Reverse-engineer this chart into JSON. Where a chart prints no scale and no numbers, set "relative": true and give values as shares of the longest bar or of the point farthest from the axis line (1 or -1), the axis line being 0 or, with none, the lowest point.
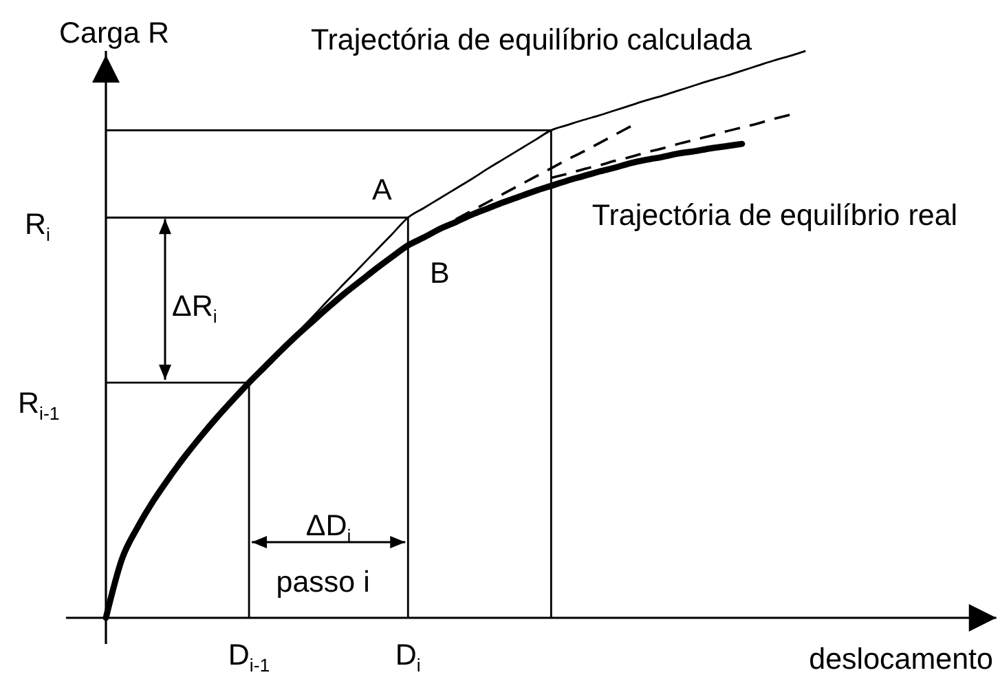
{
  "chart_data": {
    "type": "line",
    "relative": true,
    "xlabel": "deslocamento",
    "ylabel": "Carga R",
    "categories": [
      null,
      null,
      null,
      null,
      null,
      null,
      null,
      null,
      null,
      "D$_{i-1}$",
      null,
      null,
      null,
      null,
      null,
      null,
      null,
      null,
      null,
      "D$_{i}$",
      null,
      null,
      null,
      null,
      null,
      null,
      null,
      null,
      null,
      null,
      null,
      null,
      null,
      null,
      null,
      null,
      null,
      null,
      null,
      null,
      null,
      null,
      null,
      null,
      null,
      null,
      null,
      null,
      null,
      null,
      null,
      null,
      null,
      null,
      null,
      null,
      null
    ],
    "series": [
      {
        "name": "Trajectória de equilíbrio real",
        "color": "#000000",
        "values": [
          0,
          0.103,
          0.16,
          0.207,
          0.248,
          0.286,
          0.321,
          0.354,
          0.385,
          0.415,
          0.443,
          0.471,
          0.498,
          0.523,
          0.548,
          0.572,
          0.594,
          0.616,
          0.637,
          0.657,
          0.671,
          0.686,
          0.698,
          0.711,
          0.722,
          0.733,
          0.743,
          0.753,
          0.762,
          0.771,
          0.779,
          0.787,
          0.794,
          0.802,
          0.808,
          0.813,
          0.819,
          0.823,
          0.828,
          0.832,
          0.836,
          null,
          null,
          null,
          null,
          null,
          null,
          null,
          null,
          null,
          null,
          null,
          null,
          null,
          null,
          null,
          null
        ]
      },
      {
        "name": "Trajectória de equilíbrio calculada",
        "color": "#000000",
        "values": [
          null,
          null,
          null,
          null,
          null,
          null,
          null,
          null,
          null,
          0.415,
          0.444,
          0.473,
          0.502,
          0.531,
          0.561,
          0.59,
          0.619,
          0.648,
          0.677,
          0.706,
          0.723,
          0.74,
          0.757,
          0.774,
          0.792,
          0.809,
          0.826,
          0.843,
          0.86,
          0.869,
          0.878,
          0.886,
          0.895,
          0.904,
          0.913,
          0.921,
          0.93,
          0.939,
          0.948,
          0.956,
          0.965,
          0.974,
          0.983,
          0.991,
          1,
          null,
          null,
          null,
          null,
          null,
          null,
          null,
          null,
          null,
          null,
          null,
          null
        ]
      },
      {
        "color": "#000000",
        "line_style": "dashed",
        "values": [
          null,
          null,
          null,
          null,
          null,
          null,
          null,
          null,
          null,
          null,
          null,
          null,
          null,
          null,
          null,
          null,
          null,
          null,
          null,
          null,
          null,
          null,
          0.703,
          0.718,
          0.733,
          0.748,
          0.763,
          0.778,
          0.793,
          0.808,
          0.822,
          0.837,
          0.852,
          0.867,
          null,
          null,
          null,
          null,
          null,
          null,
          null,
          null,
          null,
          null,
          null,
          null,
          null,
          null,
          null,
          null,
          null,
          null,
          null,
          null,
          null,
          null,
          null
        ]
      },
      {
        "color": "#000000",
        "line_style": "dashed",
        "values": [
          null,
          null,
          null,
          null,
          null,
          null,
          null,
          null,
          null,
          null,
          null,
          null,
          null,
          null,
          null,
          null,
          null,
          null,
          null,
          null,
          null,
          null,
          null,
          null,
          null,
          null,
          null,
          null,
          0.776,
          0.783,
          0.791,
          0.798,
          0.806,
          0.813,
          0.821,
          0.828,
          0.836,
          0.843,
          0.85,
          0.858,
          0.865,
          0.872,
          0.88,
          0.887,
          null,
          null,
          null,
          null,
          null,
          null,
          null,
          null,
          null,
          null,
          null,
          null,
          null
        ]
      },
      {
        "color": "#000000",
        "values": [
          0.415,
          0.415,
          0.415,
          0.415,
          0.415,
          0.415,
          0.415,
          0.415,
          0.415,
          0.415,
          null,
          null,
          null,
          null,
          null,
          null,
          null,
          null,
          null,
          null,
          null,
          null,
          null,
          null,
          null,
          null,
          null,
          null,
          null,
          null,
          null,
          null,
          null,
          null,
          null,
          null,
          null,
          null,
          null,
          null,
          null,
          null,
          null,
          null,
          null,
          null,
          null,
          null,
          null,
          null,
          null,
          null,
          null,
          null,
          null,
          null,
          null
        ]
      },
      {
        "color": "#000000",
        "values": [
          0.706,
          0.706,
          0.706,
          0.706,
          0.706,
          0.706,
          0.706,
          0.706,
          0.706,
          0.706,
          0.706,
          0.706,
          0.706,
          0.706,
          0.706,
          0.706,
          0.706,
          0.706,
          0.706,
          0.706,
          null,
          null,
          null,
          null,
          null,
          null,
          null,
          null,
          null,
          null,
          null,
          null,
          null,
          null,
          null,
          null,
          null,
          null,
          null,
          null,
          null,
          null,
          null,
          null,
          null,
          null,
          null,
          null,
          null,
          null,
          null,
          null,
          null,
          null,
          null,
          null,
          null
        ]
      },
      {
        "color": "#000000",
        "values": [
          0.86,
          0.86,
          0.86,
          0.86,
          0.86,
          0.86,
          0.86,
          0.86,
          0.86,
          0.86,
          0.86,
          0.86,
          0.86,
          0.86,
          0.86,
          0.86,
          0.86,
          0.86,
          0.86,
          0.86,
          0.86,
          0.86,
          0.86,
          0.86,
          0.86,
          0.86,
          0.86,
          0.86,
          0.86,
          null,
          null,
          null,
          null,
          null,
          null,
          null,
          null,
          null,
          null,
          null,
          null,
          null,
          null,
          null,
          null,
          null,
          null,
          null,
          null,
          null,
          null,
          null,
          null,
          null,
          null,
          null,
          null
        ]
      },
      {
        "type": "bar",
        "color": "#000000",
        "values": [
          null,
          null,
          null,
          null,
          null,
          null,
          null,
          null,
          null,
          0.415,
          null,
          null,
          null,
          null,
          null,
          null,
          null,
          null,
          null,
          0.706,
          null,
          null,
          null,
          null,
          null,
          null,
          null,
          null,
          0.86,
          null,
          null,
          null,
          null,
          null,
          null,
          null,
          null,
          null,
          null,
          null,
          null,
          null,
          null,
          null,
          null,
          null,
          null,
          null,
          null,
          null,
          null,
          null,
          null,
          null,
          null,
          null,
          null
        ]
      }
    ],
    "annotations": [
      {
        "text": "A",
        "x": "D$_{i}$",
        "y": 0.706
      },
      {
        "text": "B",
        "x": "D$_{i}$",
        "y": 0.657
      },
      "R$_{i}$",
      "R$_{i-1}$",
      "ΔR$_{i}$",
      "ΔD$_{i}$",
      "passo i"
    ]
  }
}
